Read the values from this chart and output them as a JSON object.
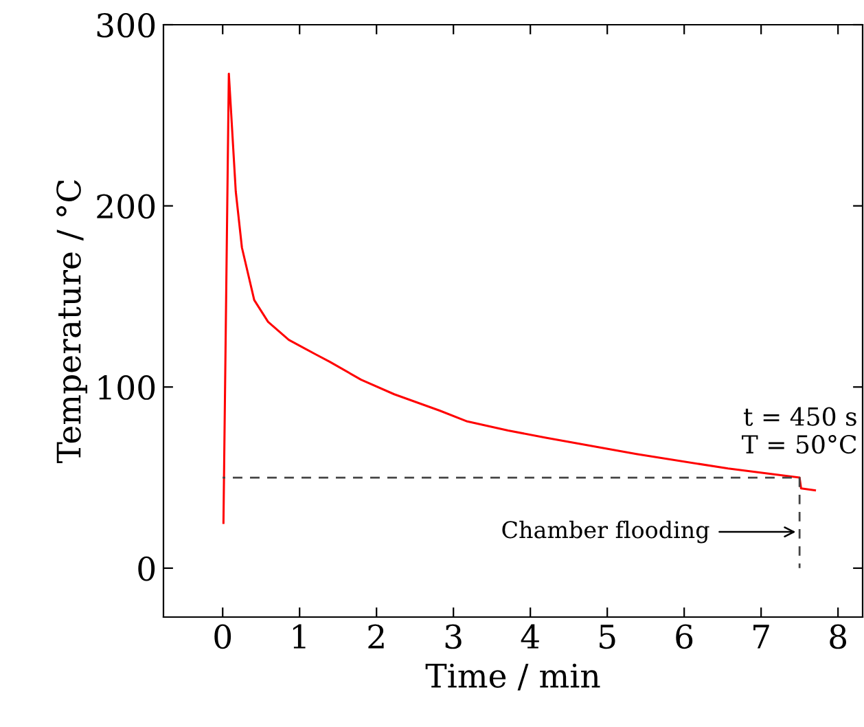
{
  "chart_data": {
    "type": "line",
    "xlabel": "Time / min",
    "ylabel": "Temperature / °C",
    "xlim": [
      -0.77,
      8.32
    ],
    "ylim": [
      -27,
      300
    ],
    "xticks": [
      0,
      1,
      2,
      3,
      4,
      5,
      6,
      7,
      8
    ],
    "yticks": [
      0,
      100,
      200,
      300
    ],
    "grid": false,
    "legend": false,
    "marker": "none",
    "series": [
      {
        "color": "#ff0000",
        "line_style": "solid",
        "x": [
          0.01,
          0.08,
          0.17,
          0.25,
          0.41,
          0.59,
          0.86,
          1.21,
          1.39,
          1.8,
          2.23,
          2.82,
          3.18,
          3.71,
          4.2,
          5.38,
          6.57,
          7.5,
          7.52,
          7.7
        ],
        "values": [
          25,
          273,
          208,
          177,
          148,
          136,
          126,
          118,
          114,
          104,
          96,
          87,
          81,
          76,
          72,
          63,
          55,
          50,
          44,
          43
        ]
      },
      {
        "color": "#444444",
        "line_style": "dashed",
        "x": [
          0,
          7.5,
          7.5
        ],
        "values": [
          50,
          50,
          0
        ]
      }
    ],
    "annotations": [
      {
        "text": "t = 450 s\nT = 50°C",
        "x": 7.5,
        "y": 50
      },
      {
        "text": "Chamber flooding",
        "x": 7.45,
        "y": 20
      }
    ]
  }
}
